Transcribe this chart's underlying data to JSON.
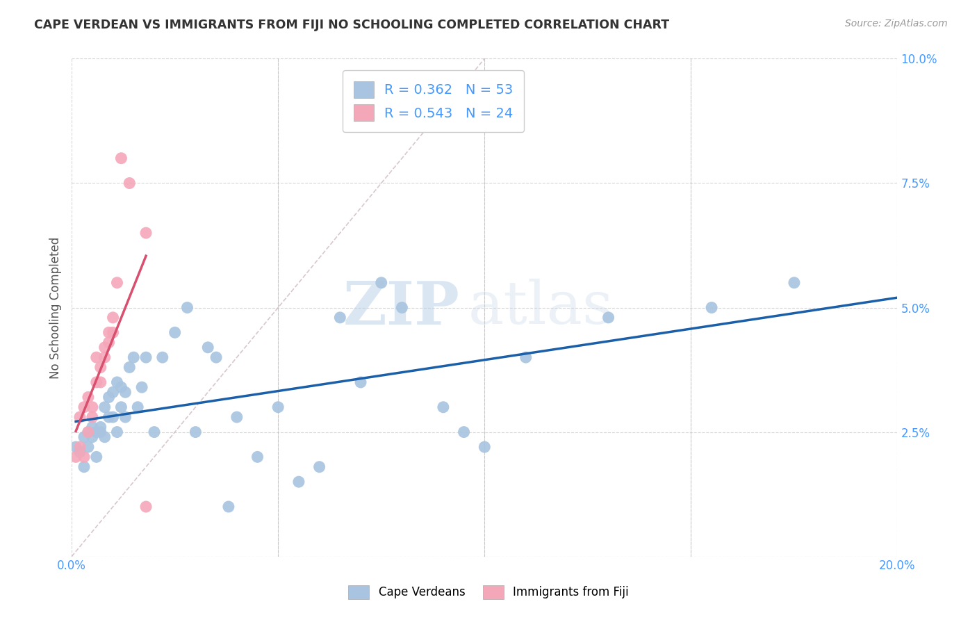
{
  "title": "CAPE VERDEAN VS IMMIGRANTS FROM FIJI NO SCHOOLING COMPLETED CORRELATION CHART",
  "source": "Source: ZipAtlas.com",
  "ylabel": "No Schooling Completed",
  "xlim": [
    0.0,
    0.2
  ],
  "ylim": [
    0.0,
    0.1
  ],
  "xtick_positions": [
    0.0,
    0.05,
    0.1,
    0.15,
    0.2
  ],
  "ytick_positions": [
    0.0,
    0.025,
    0.05,
    0.075,
    0.1
  ],
  "blue_R": 0.362,
  "blue_N": 53,
  "pink_R": 0.543,
  "pink_N": 24,
  "blue_color": "#a8c4e0",
  "pink_color": "#f4a7b9",
  "blue_line_color": "#1a5fa8",
  "pink_line_color": "#d94f6e",
  "diagonal_color": "#c8b0b4",
  "watermark_zip": "ZIP",
  "watermark_atlas": "atlas",
  "blue_scatter_x": [
    0.001,
    0.002,
    0.003,
    0.003,
    0.004,
    0.004,
    0.005,
    0.005,
    0.006,
    0.006,
    0.007,
    0.007,
    0.008,
    0.008,
    0.009,
    0.009,
    0.01,
    0.01,
    0.011,
    0.011,
    0.012,
    0.012,
    0.013,
    0.013,
    0.014,
    0.015,
    0.016,
    0.017,
    0.018,
    0.02,
    0.022,
    0.025,
    0.028,
    0.03,
    0.033,
    0.035,
    0.038,
    0.04,
    0.045,
    0.05,
    0.055,
    0.06,
    0.065,
    0.07,
    0.075,
    0.08,
    0.09,
    0.095,
    0.1,
    0.11,
    0.13,
    0.155,
    0.175
  ],
  "blue_scatter_y": [
    0.022,
    0.021,
    0.024,
    0.018,
    0.025,
    0.022,
    0.024,
    0.026,
    0.025,
    0.02,
    0.026,
    0.025,
    0.024,
    0.03,
    0.028,
    0.032,
    0.033,
    0.028,
    0.025,
    0.035,
    0.03,
    0.034,
    0.033,
    0.028,
    0.038,
    0.04,
    0.03,
    0.034,
    0.04,
    0.025,
    0.04,
    0.045,
    0.05,
    0.025,
    0.042,
    0.04,
    0.01,
    0.028,
    0.02,
    0.03,
    0.015,
    0.018,
    0.048,
    0.035,
    0.055,
    0.05,
    0.03,
    0.025,
    0.022,
    0.04,
    0.048,
    0.05,
    0.055
  ],
  "pink_scatter_x": [
    0.001,
    0.002,
    0.002,
    0.003,
    0.003,
    0.004,
    0.004,
    0.005,
    0.005,
    0.006,
    0.006,
    0.007,
    0.007,
    0.008,
    0.008,
    0.009,
    0.009,
    0.01,
    0.01,
    0.011,
    0.012,
    0.014,
    0.018,
    0.018
  ],
  "pink_scatter_y": [
    0.02,
    0.022,
    0.028,
    0.02,
    0.03,
    0.025,
    0.032,
    0.03,
    0.028,
    0.035,
    0.04,
    0.038,
    0.035,
    0.042,
    0.04,
    0.045,
    0.043,
    0.048,
    0.045,
    0.055,
    0.08,
    0.075,
    0.065,
    0.01
  ]
}
